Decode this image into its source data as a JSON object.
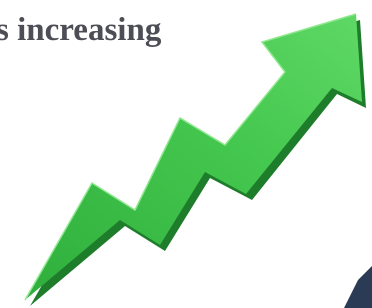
{
  "caption": "s increasing"
}
